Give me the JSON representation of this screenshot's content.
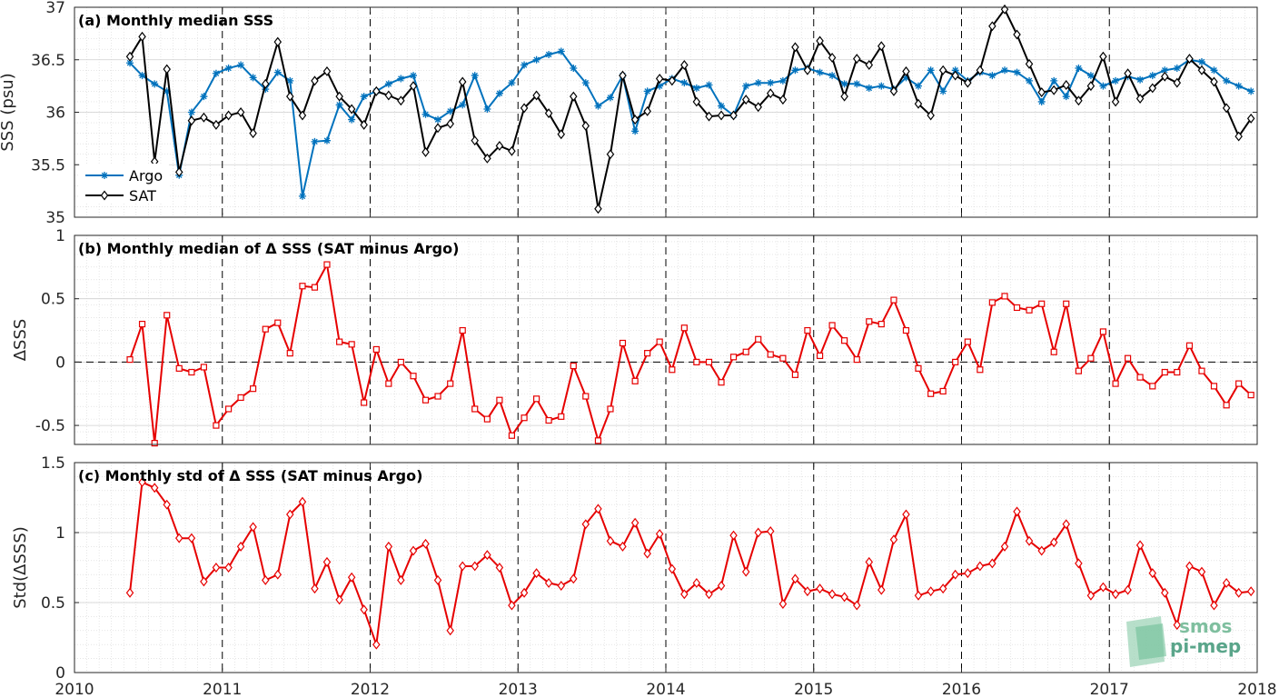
{
  "chart_data": [
    {
      "type": "line",
      "title": "(a) Monthly median SSS",
      "ylabel": "SSS (psu)",
      "xlim": [
        2010,
        2018
      ],
      "ylim": [
        35,
        37
      ],
      "yticks": [
        35,
        35.5,
        36,
        36.5,
        37
      ],
      "xticks": [
        2010,
        2011,
        2012,
        2013,
        2014,
        2015,
        2016,
        2017,
        2018
      ],
      "grid": true,
      "legend": "bottom-left",
      "series": [
        {
          "name": "Argo",
          "color": "#0072bd",
          "marker": "star",
          "x": [
            2010.375,
            2010.458,
            2010.542,
            2010.625,
            2010.708,
            2010.792,
            2010.875,
            2010.958,
            2011.042,
            2011.125,
            2011.208,
            2011.292,
            2011.375,
            2011.458,
            2011.542,
            2011.625,
            2011.708,
            2011.792,
            2011.875,
            2011.958,
            2012.042,
            2012.125,
            2012.208,
            2012.292,
            2012.375,
            2012.458,
            2012.542,
            2012.625,
            2012.708,
            2012.792,
            2012.875,
            2012.958,
            2013.042,
            2013.125,
            2013.208,
            2013.292,
            2013.375,
            2013.458,
            2013.542,
            2013.625,
            2013.708,
            2013.792,
            2013.875,
            2013.958,
            2014.042,
            2014.125,
            2014.208,
            2014.292,
            2014.375,
            2014.458,
            2014.542,
            2014.625,
            2014.708,
            2014.792,
            2014.875,
            2014.958,
            2015.042,
            2015.125,
            2015.208,
            2015.292,
            2015.375,
            2015.458,
            2015.542,
            2015.625,
            2015.708,
            2015.792,
            2015.875,
            2015.958,
            2016.042,
            2016.125,
            2016.208,
            2016.292,
            2016.375,
            2016.458,
            2016.542,
            2016.625,
            2016.708,
            2016.792,
            2016.875,
            2016.958,
            2017.042,
            2017.125,
            2017.208,
            2017.292,
            2017.375,
            2017.458,
            2017.542,
            2017.625,
            2017.708,
            2017.792,
            2017.875,
            2017.958
          ],
          "values": [
            36.47,
            36.35,
            36.27,
            36.2,
            35.4,
            36.0,
            36.15,
            36.37,
            36.42,
            36.45,
            36.33,
            36.22,
            36.38,
            36.3,
            35.2,
            35.72,
            35.73,
            36.07,
            35.93,
            36.15,
            36.2,
            36.27,
            36.32,
            36.35,
            35.98,
            35.93,
            36.01,
            36.07,
            36.35,
            36.03,
            36.18,
            36.28,
            36.45,
            36.5,
            36.55,
            36.58,
            36.42,
            36.28,
            36.06,
            36.14,
            36.35,
            35.82,
            36.2,
            36.25,
            36.32,
            36.28,
            36.23,
            36.26,
            36.06,
            35.97,
            36.25,
            36.28,
            36.28,
            36.3,
            36.4,
            36.42,
            36.38,
            36.35,
            36.27,
            36.27,
            36.23,
            36.25,
            36.22,
            36.33,
            36.25,
            36.4,
            36.2,
            36.4,
            36.3,
            36.38,
            36.35,
            36.4,
            36.38,
            36.3,
            36.1,
            36.3,
            36.15,
            36.42,
            36.35,
            36.25,
            36.3,
            36.34,
            36.31,
            36.35,
            36.4,
            36.42,
            36.5,
            36.48,
            36.4,
            36.3,
            36.25,
            36.2
          ]
        },
        {
          "name": "SAT",
          "color": "#000000",
          "marker": "diamond",
          "x": [
            2010.375,
            2010.458,
            2010.542,
            2010.625,
            2010.708,
            2010.792,
            2010.875,
            2010.958,
            2011.042,
            2011.125,
            2011.208,
            2011.292,
            2011.375,
            2011.458,
            2011.542,
            2011.625,
            2011.708,
            2011.792,
            2011.875,
            2011.958,
            2012.042,
            2012.125,
            2012.208,
            2012.292,
            2012.375,
            2012.458,
            2012.542,
            2012.625,
            2012.708,
            2012.792,
            2012.875,
            2012.958,
            2013.042,
            2013.125,
            2013.208,
            2013.292,
            2013.375,
            2013.458,
            2013.542,
            2013.625,
            2013.708,
            2013.792,
            2013.875,
            2013.958,
            2014.042,
            2014.125,
            2014.208,
            2014.292,
            2014.375,
            2014.458,
            2014.542,
            2014.625,
            2014.708,
            2014.792,
            2014.875,
            2014.958,
            2015.042,
            2015.125,
            2015.208,
            2015.292,
            2015.375,
            2015.458,
            2015.542,
            2015.625,
            2015.708,
            2015.792,
            2015.875,
            2015.958,
            2016.042,
            2016.125,
            2016.208,
            2016.292,
            2016.375,
            2016.458,
            2016.542,
            2016.625,
            2016.708,
            2016.792,
            2016.875,
            2016.958,
            2017.042,
            2017.125,
            2017.208,
            2017.292,
            2017.375,
            2017.458,
            2017.542,
            2017.625,
            2017.708,
            2017.792,
            2017.875,
            2017.958
          ],
          "values": [
            36.53,
            36.72,
            35.53,
            36.41,
            35.43,
            35.92,
            35.95,
            35.88,
            35.97,
            36.0,
            35.8,
            36.27,
            36.67,
            36.15,
            35.97,
            36.3,
            36.39,
            36.15,
            36.03,
            35.88,
            36.2,
            36.16,
            36.11,
            36.25,
            35.62,
            35.85,
            35.89,
            36.29,
            35.73,
            35.56,
            35.68,
            35.63,
            36.04,
            36.16,
            35.99,
            35.79,
            36.15,
            35.87,
            35.08,
            35.6,
            36.35,
            35.93,
            36.01,
            36.32,
            36.3,
            36.45,
            36.1,
            35.96,
            35.97,
            35.97,
            36.12,
            36.05,
            36.18,
            36.12,
            36.62,
            36.4,
            36.68,
            36.52,
            36.15,
            36.51,
            36.45,
            36.63,
            36.2,
            36.39,
            36.08,
            35.97,
            36.4,
            36.35,
            36.28,
            36.4,
            36.82,
            36.98,
            36.74,
            36.46,
            36.19,
            36.21,
            36.26,
            36.11,
            36.25,
            36.53,
            36.1,
            36.37,
            36.13,
            36.23,
            36.34,
            36.28,
            36.51,
            36.4,
            36.29,
            36.04,
            35.77,
            35.94
          ]
        }
      ]
    },
    {
      "type": "line",
      "title": "(b) Monthly median of Δ SSS (SAT minus Argo)",
      "ylabel": "ΔSSS",
      "xlim": [
        2010,
        2018
      ],
      "ylim": [
        -0.65,
        1
      ],
      "yticks": [
        -0.5,
        0,
        0.5,
        1
      ],
      "yticklabels": [
        "-0.5",
        "0",
        "0.5",
        "1"
      ],
      "xticks": [
        2010,
        2011,
        2012,
        2013,
        2014,
        2015,
        2016,
        2017,
        2018
      ],
      "grid": true,
      "reference_line": 0,
      "series": [
        {
          "color": "#e60000",
          "marker": "square",
          "x": [
            2010.375,
            2010.458,
            2010.542,
            2010.625,
            2010.708,
            2010.792,
            2010.875,
            2010.958,
            2011.042,
            2011.125,
            2011.208,
            2011.292,
            2011.375,
            2011.458,
            2011.542,
            2011.625,
            2011.708,
            2011.792,
            2011.875,
            2011.958,
            2012.042,
            2012.125,
            2012.208,
            2012.292,
            2012.375,
            2012.458,
            2012.542,
            2012.625,
            2012.708,
            2012.792,
            2012.875,
            2012.958,
            2013.042,
            2013.125,
            2013.208,
            2013.292,
            2013.375,
            2013.458,
            2013.542,
            2013.625,
            2013.708,
            2013.792,
            2013.875,
            2013.958,
            2014.042,
            2014.125,
            2014.208,
            2014.292,
            2014.375,
            2014.458,
            2014.542,
            2014.625,
            2014.708,
            2014.792,
            2014.875,
            2014.958,
            2015.042,
            2015.125,
            2015.208,
            2015.292,
            2015.375,
            2015.458,
            2015.542,
            2015.625,
            2015.708,
            2015.792,
            2015.875,
            2015.958,
            2016.042,
            2016.125,
            2016.208,
            2016.292,
            2016.375,
            2016.458,
            2016.542,
            2016.625,
            2016.708,
            2016.792,
            2016.875,
            2016.958,
            2017.042,
            2017.125,
            2017.208,
            2017.292,
            2017.375,
            2017.458,
            2017.542,
            2017.625,
            2017.708,
            2017.792,
            2017.875,
            2017.958
          ],
          "values": [
            0.02,
            0.3,
            -0.64,
            0.37,
            -0.05,
            -0.08,
            -0.04,
            -0.5,
            -0.37,
            -0.28,
            -0.21,
            0.26,
            0.31,
            0.07,
            0.6,
            0.59,
            0.77,
            0.16,
            0.14,
            -0.32,
            0.1,
            -0.17,
            0.0,
            -0.11,
            -0.3,
            -0.27,
            -0.17,
            0.25,
            -0.37,
            -0.45,
            -0.3,
            -0.58,
            -0.44,
            -0.29,
            -0.46,
            -0.43,
            -0.03,
            -0.27,
            -0.62,
            -0.37,
            0.15,
            -0.15,
            0.07,
            0.16,
            -0.06,
            0.27,
            0.0,
            0.0,
            -0.16,
            0.04,
            0.08,
            0.18,
            0.06,
            0.03,
            -0.1,
            0.25,
            0.05,
            0.29,
            0.17,
            0.02,
            0.32,
            0.3,
            0.49,
            0.25,
            -0.05,
            -0.25,
            -0.23,
            0.0,
            0.16,
            -0.06,
            0.47,
            0.52,
            0.43,
            0.41,
            0.46,
            0.08,
            0.46,
            -0.07,
            0.03,
            0.24,
            -0.17,
            0.03,
            -0.12,
            -0.19,
            -0.08,
            -0.08,
            0.13,
            -0.07,
            -0.19,
            -0.34,
            -0.17,
            -0.26
          ]
        }
      ]
    },
    {
      "type": "line",
      "title": "(c) Monthly std of Δ SSS (SAT minus Argo)",
      "ylabel": "Std(ΔSSS)",
      "xlabel": "",
      "xlim": [
        2010,
        2018
      ],
      "ylim": [
        0,
        1.5
      ],
      "yticks": [
        0,
        0.5,
        1,
        1.5
      ],
      "yticklabels": [
        "0",
        "0.5",
        "1",
        "1.5"
      ],
      "xticks": [
        2010,
        2011,
        2012,
        2013,
        2014,
        2015,
        2016,
        2017,
        2018
      ],
      "xticklabels": [
        "2010",
        "2011",
        "2012",
        "2013",
        "2014",
        "2015",
        "2016",
        "2017",
        "2018"
      ],
      "grid": true,
      "series": [
        {
          "color": "#e60000",
          "marker": "diamond",
          "x": [
            2010.375,
            2010.458,
            2010.542,
            2010.625,
            2010.708,
            2010.792,
            2010.875,
            2010.958,
            2011.042,
            2011.125,
            2011.208,
            2011.292,
            2011.375,
            2011.458,
            2011.542,
            2011.625,
            2011.708,
            2011.792,
            2011.875,
            2011.958,
            2012.042,
            2012.125,
            2012.208,
            2012.292,
            2012.375,
            2012.458,
            2012.542,
            2012.625,
            2012.708,
            2012.792,
            2012.875,
            2012.958,
            2013.042,
            2013.125,
            2013.208,
            2013.292,
            2013.375,
            2013.458,
            2013.542,
            2013.625,
            2013.708,
            2013.792,
            2013.875,
            2013.958,
            2014.042,
            2014.125,
            2014.208,
            2014.292,
            2014.375,
            2014.458,
            2014.542,
            2014.625,
            2014.708,
            2014.792,
            2014.875,
            2014.958,
            2015.042,
            2015.125,
            2015.208,
            2015.292,
            2015.375,
            2015.458,
            2015.542,
            2015.625,
            2015.708,
            2015.792,
            2015.875,
            2015.958,
            2016.042,
            2016.125,
            2016.208,
            2016.292,
            2016.375,
            2016.458,
            2016.542,
            2016.625,
            2016.708,
            2016.792,
            2016.875,
            2016.958,
            2017.042,
            2017.125,
            2017.208,
            2017.292,
            2017.375,
            2017.458,
            2017.542,
            2017.625,
            2017.708,
            2017.792,
            2017.875,
            2017.958
          ],
          "values": [
            0.57,
            1.36,
            1.32,
            1.2,
            0.96,
            0.96,
            0.65,
            0.75,
            0.75,
            0.9,
            1.04,
            0.66,
            0.7,
            1.13,
            1.22,
            0.6,
            0.79,
            0.52,
            0.68,
            0.45,
            0.2,
            0.9,
            0.66,
            0.87,
            0.92,
            0.66,
            0.3,
            0.76,
            0.76,
            0.84,
            0.75,
            0.48,
            0.57,
            0.71,
            0.64,
            0.62,
            0.67,
            1.06,
            1.17,
            0.94,
            0.9,
            1.07,
            0.85,
            0.99,
            0.74,
            0.56,
            0.64,
            0.56,
            0.62,
            0.98,
            0.72,
            1.0,
            1.01,
            0.49,
            0.67,
            0.58,
            0.6,
            0.56,
            0.54,
            0.48,
            0.79,
            0.59,
            0.95,
            1.13,
            0.55,
            0.58,
            0.6,
            0.7,
            0.71,
            0.76,
            0.78,
            0.9,
            1.15,
            0.94,
            0.87,
            0.93,
            1.06,
            0.78,
            0.55,
            0.61,
            0.56,
            0.59,
            0.91,
            0.71,
            0.57,
            0.34,
            0.76,
            0.72,
            0.48,
            0.64,
            0.57,
            0.58
          ]
        }
      ]
    }
  ],
  "logo": {
    "line1": "smos",
    "line2": "pi-mep"
  }
}
